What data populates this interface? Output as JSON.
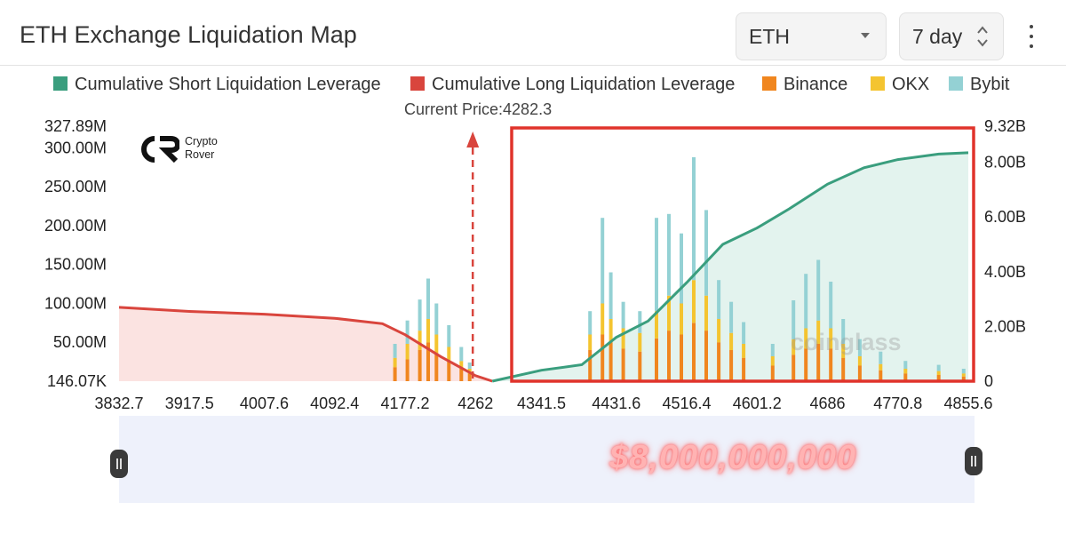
{
  "header": {
    "title": "ETH Exchange Liquidation Map",
    "symbol_select": "ETH",
    "range_select": "7 day"
  },
  "legend": [
    {
      "label": "Cumulative Short Liquidation Leverage",
      "color": "#3a9e7e"
    },
    {
      "label": "Cumulative Long Liquidation Leverage",
      "color": "#d9453d"
    },
    {
      "label": "Binance",
      "color": "#f0861f"
    },
    {
      "label": "OKX",
      "color": "#f4c430"
    },
    {
      "label": "Bybit",
      "color": "#94d1d4"
    }
  ],
  "current_price_label": "Current Price:4282.3",
  "logo": {
    "line1": "Crypto",
    "line2": "Rover"
  },
  "watermark": "coinglass",
  "slider_stamp": "$8,000,000,000",
  "chart_data": {
    "type": "bar",
    "title": "ETH Exchange Liquidation Map",
    "x_ticks": [
      "3832.7",
      "3917.5",
      "4007.6",
      "4092.4",
      "4177.2",
      "4262",
      "4341.5",
      "4431.6",
      "4516.4",
      "4601.2",
      "4686",
      "4770.8",
      "4855.6"
    ],
    "x_range": [
      3832.7,
      4855.6
    ],
    "current_price": 4282.3,
    "y_left": {
      "ticks": [
        "327.89M",
        "300.00M",
        "250.00M",
        "200.00M",
        "150.00M",
        "100.00M",
        "50.00M",
        "146.07K"
      ],
      "range": [
        0,
        327.89
      ],
      "unit": "M"
    },
    "y_right": {
      "ticks": [
        "9.32B",
        "8.00B",
        "6.00B",
        "4.00B",
        "2.00B",
        "0"
      ],
      "range": [
        0,
        9.32
      ],
      "unit": "B"
    },
    "stacked_bars": [
      {
        "x": 4165,
        "binance": 18,
        "okx": 12,
        "bybit": 18
      },
      {
        "x": 4180,
        "binance": 28,
        "okx": 20,
        "bybit": 30
      },
      {
        "x": 4195,
        "binance": 40,
        "okx": 25,
        "bybit": 40
      },
      {
        "x": 4205,
        "binance": 50,
        "okx": 30,
        "bybit": 52
      },
      {
        "x": 4215,
        "binance": 36,
        "okx": 24,
        "bybit": 40
      },
      {
        "x": 4230,
        "binance": 26,
        "okx": 18,
        "bybit": 28
      },
      {
        "x": 4245,
        "binance": 16,
        "okx": 10,
        "bybit": 18
      },
      {
        "x": 4255,
        "binance": 10,
        "okx": 6,
        "bybit": 8
      },
      {
        "x": 4400,
        "binance": 40,
        "okx": 20,
        "bybit": 30
      },
      {
        "x": 4415,
        "binance": 60,
        "okx": 40,
        "bybit": 110
      },
      {
        "x": 4425,
        "binance": 50,
        "okx": 30,
        "bybit": 60
      },
      {
        "x": 4440,
        "binance": 42,
        "okx": 26,
        "bybit": 34
      },
      {
        "x": 4460,
        "binance": 38,
        "okx": 24,
        "bybit": 28
      },
      {
        "x": 4480,
        "binance": 55,
        "okx": 35,
        "bybit": 120
      },
      {
        "x": 4495,
        "binance": 65,
        "okx": 45,
        "bybit": 105
      },
      {
        "x": 4510,
        "binance": 60,
        "okx": 40,
        "bybit": 90
      },
      {
        "x": 4525,
        "binance": 75,
        "okx": 55,
        "bybit": 158
      },
      {
        "x": 4540,
        "binance": 65,
        "okx": 45,
        "bybit": 110
      },
      {
        "x": 4555,
        "binance": 50,
        "okx": 30,
        "bybit": 50
      },
      {
        "x": 4570,
        "binance": 40,
        "okx": 22,
        "bybit": 40
      },
      {
        "x": 4585,
        "binance": 30,
        "okx": 18,
        "bybit": 28
      },
      {
        "x": 4620,
        "binance": 20,
        "okx": 12,
        "bybit": 16
      },
      {
        "x": 4645,
        "binance": 34,
        "okx": 20,
        "bybit": 50
      },
      {
        "x": 4660,
        "binance": 42,
        "okx": 26,
        "bybit": 70
      },
      {
        "x": 4675,
        "binance": 48,
        "okx": 30,
        "bybit": 78
      },
      {
        "x": 4690,
        "binance": 42,
        "okx": 26,
        "bybit": 60
      },
      {
        "x": 4705,
        "binance": 30,
        "okx": 18,
        "bybit": 32
      },
      {
        "x": 4725,
        "binance": 20,
        "okx": 12,
        "bybit": 22
      },
      {
        "x": 4750,
        "binance": 14,
        "okx": 8,
        "bybit": 16
      },
      {
        "x": 4780,
        "binance": 10,
        "okx": 6,
        "bybit": 10
      },
      {
        "x": 4820,
        "binance": 8,
        "okx": 5,
        "bybit": 8
      },
      {
        "x": 4850,
        "binance": 6,
        "okx": 4,
        "bybit": 6
      }
    ],
    "series": [
      {
        "name": "Cumulative Long Liquidation Leverage",
        "axis": "right",
        "x": [
          3832.7,
          3917.5,
          4007.6,
          4092.4,
          4150,
          4177.2,
          4220,
          4262,
          4282.3
        ],
        "y": [
          2.7,
          2.55,
          2.45,
          2.3,
          2.1,
          1.7,
          0.9,
          0.2,
          0
        ]
      },
      {
        "name": "Cumulative Short Liquidation Leverage",
        "axis": "right",
        "x": [
          4282.3,
          4341.5,
          4390,
          4431.6,
          4470,
          4516.4,
          4560,
          4601.2,
          4640,
          4686,
          4730,
          4770.8,
          4820,
          4855.6
        ],
        "y": [
          0,
          0.4,
          0.6,
          1.6,
          2.2,
          3.6,
          5.0,
          5.6,
          6.3,
          7.2,
          7.8,
          8.1,
          8.3,
          8.35
        ]
      }
    ]
  }
}
